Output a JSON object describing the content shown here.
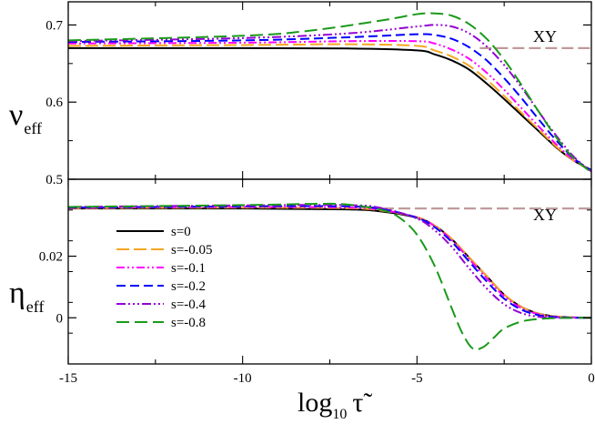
{
  "chart_data": [
    {
      "type": "line",
      "panel": "top",
      "ylabel_main": "ν",
      "ylabel_sub": "eff",
      "ylim": [
        0.5,
        0.73
      ],
      "xlim": [
        -15,
        0
      ],
      "yticks": [
        0.5,
        0.6,
        0.7
      ],
      "ytick_labels": [
        "0.5",
        "0.6",
        "0.7"
      ],
      "annotation": "XY",
      "reference": {
        "name": "XY",
        "value": 0.67,
        "x_start": -3.2,
        "x_end": 0
      },
      "series": [
        {
          "name": "s=0",
          "color": "#000000",
          "dash": "",
          "x": [
            -15,
            -10,
            -7,
            -5,
            -4.5,
            -4,
            -3.5,
            -3,
            -2.5,
            -2,
            -1.5,
            -1,
            -0.5,
            0
          ],
          "y": [
            0.67,
            0.67,
            0.6695,
            0.667,
            0.662,
            0.654,
            0.642,
            0.624,
            0.604,
            0.583,
            0.562,
            0.541,
            0.524,
            0.512
          ]
        },
        {
          "name": "s=-0.05",
          "color": "#f5a623",
          "dash": "14 5",
          "x": [
            -15,
            -10,
            -7,
            -5,
            -4.5,
            -4,
            -3.5,
            -3,
            -2.5,
            -2,
            -1.5,
            -1,
            -0.5,
            0
          ],
          "y": [
            0.673,
            0.674,
            0.675,
            0.673,
            0.667,
            0.659,
            0.647,
            0.629,
            0.608,
            0.586,
            0.564,
            0.542,
            0.524,
            0.511
          ]
        },
        {
          "name": "s=-0.1",
          "color": "#ff00ff",
          "dash": "9 3 2 3 2 3",
          "x": [
            -15,
            -10,
            -7,
            -5,
            -4.5,
            -4,
            -3.5,
            -3,
            -2.5,
            -2,
            -1.5,
            -1,
            -0.5,
            0
          ],
          "y": [
            0.676,
            0.677,
            0.679,
            0.679,
            0.676,
            0.668,
            0.656,
            0.638,
            0.616,
            0.592,
            0.568,
            0.545,
            0.525,
            0.511
          ]
        },
        {
          "name": "s=-0.2",
          "color": "#0000ff",
          "dash": "10 5",
          "x": [
            -15,
            -10,
            -7,
            -5,
            -4.5,
            -4,
            -3.5,
            -3,
            -2.5,
            -2,
            -1.5,
            -1,
            -0.5,
            0
          ],
          "y": [
            0.678,
            0.68,
            0.684,
            0.688,
            0.687,
            0.682,
            0.671,
            0.654,
            0.631,
            0.605,
            0.577,
            0.55,
            0.527,
            0.511
          ]
        },
        {
          "name": "s=-0.4",
          "color": "#9400d3",
          "dash": "10 3 2 3 2 3 2 3",
          "x": [
            -15,
            -10,
            -7,
            -5,
            -4.5,
            -4,
            -3.5,
            -3,
            -2.5,
            -2,
            -1.5,
            -1,
            -0.5,
            0
          ],
          "y": [
            0.679,
            0.683,
            0.689,
            0.698,
            0.7,
            0.698,
            0.689,
            0.672,
            0.648,
            0.619,
            0.587,
            0.556,
            0.529,
            0.51
          ]
        },
        {
          "name": "s=-0.8",
          "color": "#1a9a1a",
          "dash": "14 6",
          "x": [
            -15,
            -10,
            -8,
            -6,
            -5,
            -4.5,
            -4,
            -3.5,
            -3,
            -2.5,
            -2,
            -1.5,
            -1,
            -0.5,
            0
          ],
          "y": [
            0.68,
            0.686,
            0.693,
            0.706,
            0.714,
            0.715,
            0.712,
            0.701,
            0.682,
            0.655,
            0.622,
            0.587,
            0.554,
            0.527,
            0.509
          ]
        }
      ]
    },
    {
      "type": "line",
      "panel": "bottom",
      "ylabel_main": "η",
      "ylabel_sub": "eff",
      "ylim": [
        -0.015,
        0.045
      ],
      "xlim": [
        -15,
        0
      ],
      "yticks": [
        0,
        0.02
      ],
      "ytick_labels": [
        "0",
        "0.02"
      ],
      "xticks": [
        -15,
        -10,
        -5,
        0
      ],
      "xtick_labels": [
        "-15",
        "-10",
        "-5",
        "0"
      ],
      "xlabel_main": "log",
      "xlabel_sub": "10",
      "xlabel_var": "τ̃",
      "annotation": "XY",
      "reference": {
        "name": "XY",
        "value": 0.0355,
        "x_start": -6,
        "x_end": 0
      },
      "series": [
        {
          "name": "s=0",
          "color": "#000000",
          "dash": "",
          "x": [
            -15,
            -10,
            -7,
            -6,
            -5,
            -4.5,
            -4,
            -3.5,
            -3,
            -2.5,
            -2,
            -1.5,
            -1,
            -0.5,
            0
          ],
          "y": [
            0.0355,
            0.0355,
            0.0352,
            0.0345,
            0.0325,
            0.03,
            0.0255,
            0.0195,
            0.0135,
            0.0075,
            0.0035,
            0.0013,
            0.0004,
            0.0001,
            0
          ]
        },
        {
          "name": "s=-0.05",
          "color": "#f5a623",
          "dash": "14 5",
          "x": [
            -15,
            -10,
            -7,
            -6,
            -5,
            -4.5,
            -4,
            -3.5,
            -3,
            -2.5,
            -2,
            -1.5,
            -1,
            -0.5,
            0
          ],
          "y": [
            0.0356,
            0.0358,
            0.0356,
            0.0348,
            0.0327,
            0.03,
            0.0256,
            0.0196,
            0.0135,
            0.0075,
            0.0035,
            0.0013,
            0.0004,
            0.0001,
            0
          ]
        },
        {
          "name": "s=-0.1",
          "color": "#ff00ff",
          "dash": "9 3 2 3 2 3",
          "x": [
            -15,
            -10,
            -7,
            -6,
            -5,
            -4.5,
            -4,
            -3.5,
            -3,
            -2.5,
            -2,
            -1.5,
            -1,
            -0.5,
            0
          ],
          "y": [
            0.0357,
            0.036,
            0.0358,
            0.035,
            0.0326,
            0.0298,
            0.0252,
            0.019,
            0.0128,
            0.007,
            0.0031,
            0.0011,
            0.0003,
            0.0001,
            0
          ]
        },
        {
          "name": "s=-0.2",
          "color": "#0000ff",
          "dash": "10 5",
          "x": [
            -15,
            -10,
            -7,
            -6,
            -5,
            -4.5,
            -4,
            -3.5,
            -3,
            -2.5,
            -2,
            -1.5,
            -1,
            -0.5,
            0
          ],
          "y": [
            0.0358,
            0.0362,
            0.0362,
            0.0353,
            0.0325,
            0.0295,
            0.0246,
            0.0182,
            0.0118,
            0.0062,
            0.0026,
            0.0008,
            0.0002,
            0,
            0
          ]
        },
        {
          "name": "s=-0.4",
          "color": "#9400d3",
          "dash": "10 3 2 3 2 3 2 3",
          "x": [
            -15,
            -10,
            -7,
            -6,
            -5,
            -4.5,
            -4,
            -3.5,
            -3,
            -2.5,
            -2,
            -1.5,
            -1,
            -0.5,
            0
          ],
          "y": [
            0.036,
            0.0365,
            0.0366,
            0.0356,
            0.0322,
            0.0285,
            0.023,
            0.016,
            0.0095,
            0.0044,
            0.0015,
            0.0003,
            0,
            0,
            0
          ]
        },
        {
          "name": "s=-0.8",
          "color": "#1a9a1a",
          "dash": "14 6",
          "x": [
            -15,
            -10,
            -8,
            -7,
            -6,
            -5.5,
            -5,
            -4.5,
            -4,
            -3.7,
            -3.4,
            -3.1,
            -2.8,
            -2.5,
            -2,
            -1.5,
            -1,
            -0.5,
            0
          ],
          "y": [
            0.036,
            0.0366,
            0.037,
            0.0368,
            0.035,
            0.0325,
            0.027,
            0.017,
            0.003,
            -0.005,
            -0.01,
            -0.0095,
            -0.0065,
            -0.0035,
            -0.0012,
            -0.0004,
            -0.0001,
            0,
            0
          ]
        }
      ]
    }
  ]
}
